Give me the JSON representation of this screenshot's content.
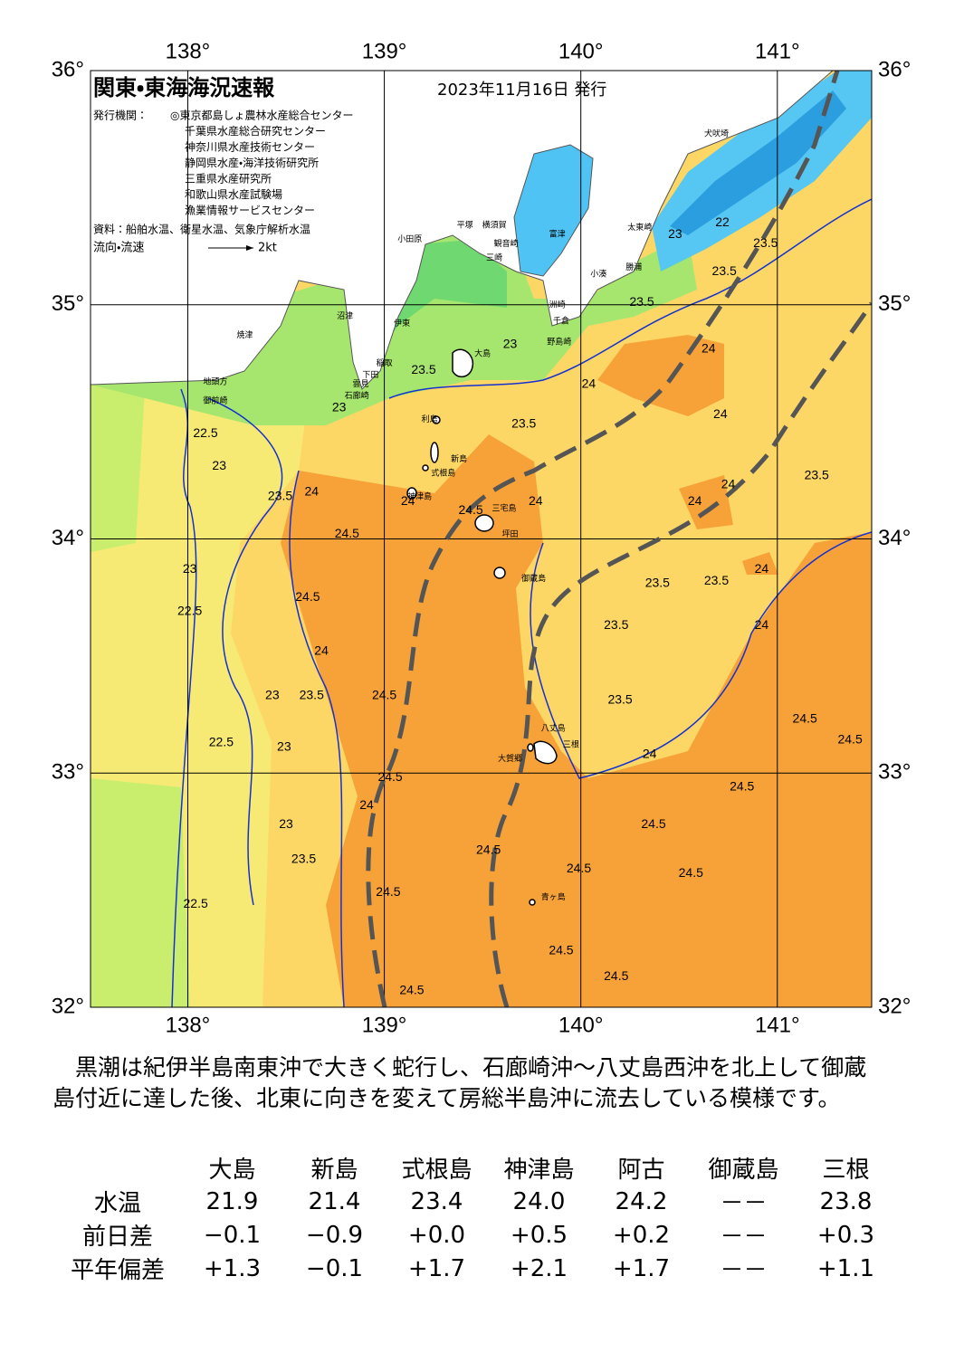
{
  "header": {
    "title": "関東・東海海況速報",
    "date": "2023年11月16日 発行",
    "issuer_label": "発行機関：",
    "issuers": [
      "◎東京都島しょ農林水産総合センター",
      "千葉県水産総合研究センター",
      "神奈川県水産技術センター",
      "静岡県水産・海洋技術研究所",
      "三重県水産研究所",
      "和歌山県水産試験場",
      "漁業情報サービスセンター"
    ],
    "source": "資料：船舶水温、衛星水温、気象庁解析水温",
    "flow_label": "流向・流速",
    "flow_scale": "2kt"
  },
  "map": {
    "lonlim": [
      137.505,
      141.48
    ],
    "latlim": [
      32,
      36
    ],
    "lonticks": [
      {
        "value": 138,
        "label": "138°"
      },
      {
        "value": 139,
        "label": "139°"
      },
      {
        "value": 140,
        "label": "140°"
      },
      {
        "value": 141,
        "label": "141°"
      }
    ],
    "latticks": [
      {
        "value": 36,
        "label": "36°"
      },
      {
        "value": 35,
        "label": "35°"
      },
      {
        "value": 34,
        "label": "34°"
      },
      {
        "value": 33,
        "label": "33°"
      },
      {
        "value": 32,
        "label": "32°"
      }
    ],
    "contour_labels": [
      {
        "value": 22.5,
        "lon": 138.09,
        "lat": 34.45
      },
      {
        "value": 23,
        "lon": 138.16,
        "lat": 34.31
      },
      {
        "value": 23.5,
        "lon": 138.47,
        "lat": 34.18
      },
      {
        "value": 24,
        "lon": 138.63,
        "lat": 34.2
      },
      {
        "value": 24.5,
        "lon": 138.81,
        "lat": 34.02
      },
      {
        "value": 24.5,
        "lon": 138.61,
        "lat": 33.75
      },
      {
        "value": 24,
        "lon": 138.68,
        "lat": 33.52
      },
      {
        "value": 23.5,
        "lon": 138.63,
        "lat": 33.33
      },
      {
        "value": 24.5,
        "lon": 139.0,
        "lat": 33.33
      },
      {
        "value": 24.5,
        "lon": 139.03,
        "lat": 32.98
      },
      {
        "value": 24,
        "lon": 138.91,
        "lat": 32.86
      },
      {
        "value": 23.5,
        "lon": 138.59,
        "lat": 32.63
      },
      {
        "value": 24.5,
        "lon": 139.02,
        "lat": 32.49
      },
      {
        "value": 24.5,
        "lon": 139.14,
        "lat": 32.07
      },
      {
        "value": 22.5,
        "lon": 138.04,
        "lat": 32.44
      },
      {
        "value": 22.5,
        "lon": 138.17,
        "lat": 33.13
      },
      {
        "value": 22.5,
        "lon": 138.01,
        "lat": 33.69
      },
      {
        "value": 23,
        "lon": 138.01,
        "lat": 33.87
      },
      {
        "value": 23,
        "lon": 138.43,
        "lat": 33.33
      },
      {
        "value": 23,
        "lon": 138.49,
        "lat": 33.11
      },
      {
        "value": 23,
        "lon": 138.5,
        "lat": 32.78
      },
      {
        "value": 23.5,
        "lon": 139.2,
        "lat": 34.72
      },
      {
        "value": 23,
        "lon": 139.64,
        "lat": 34.83
      },
      {
        "value": 23.5,
        "lon": 139.71,
        "lat": 34.49
      },
      {
        "value": 24,
        "lon": 139.77,
        "lat": 34.16
      },
      {
        "value": 24.5,
        "lon": 139.44,
        "lat": 34.12
      },
      {
        "value": 24,
        "lon": 139.12,
        "lat": 34.16
      },
      {
        "value": 24.5,
        "lon": 139.53,
        "lat": 32.67
      },
      {
        "value": 24.5,
        "lon": 139.99,
        "lat": 32.59
      },
      {
        "value": 24.5,
        "lon": 139.9,
        "lat": 32.24
      },
      {
        "value": 24.5,
        "lon": 140.18,
        "lat": 32.13
      },
      {
        "value": 24.5,
        "lon": 140.37,
        "lat": 32.78
      },
      {
        "value": 24.5,
        "lon": 140.56,
        "lat": 32.57
      },
      {
        "value": 24.5,
        "lon": 140.82,
        "lat": 32.94
      },
      {
        "value": 24,
        "lon": 140.35,
        "lat": 33.08
      },
      {
        "value": 24.5,
        "lon": 141.14,
        "lat": 33.23
      },
      {
        "value": 24.5,
        "lon": 141.37,
        "lat": 33.14
      },
      {
        "value": 24,
        "lon": 140.92,
        "lat": 33.63
      },
      {
        "value": 23.5,
        "lon": 140.18,
        "lat": 33.63
      },
      {
        "value": 23.5,
        "lon": 140.2,
        "lat": 33.31
      },
      {
        "value": 23.5,
        "lon": 140.39,
        "lat": 33.81
      },
      {
        "value": 23.5,
        "lon": 140.69,
        "lat": 33.82
      },
      {
        "value": 24,
        "lon": 140.92,
        "lat": 33.87
      },
      {
        "value": 24,
        "lon": 140.75,
        "lat": 34.23
      },
      {
        "value": 24,
        "lon": 140.58,
        "lat": 34.16
      },
      {
        "value": 23.5,
        "lon": 141.2,
        "lat": 34.27
      },
      {
        "value": 24,
        "lon": 140.71,
        "lat": 34.53
      },
      {
        "value": 24,
        "lon": 140.65,
        "lat": 34.81
      },
      {
        "value": 24,
        "lon": 140.04,
        "lat": 34.66
      },
      {
        "value": 23.5,
        "lon": 140.31,
        "lat": 35.01
      },
      {
        "value": 23.5,
        "lon": 140.73,
        "lat": 35.14
      },
      {
        "value": 23.5,
        "lon": 140.94,
        "lat": 35.26
      },
      {
        "value": 22,
        "lon": 140.72,
        "lat": 35.35
      },
      {
        "value": 23,
        "lon": 140.48,
        "lat": 35.3
      },
      {
        "value": 23,
        "lon": 138.77,
        "lat": 34.56
      }
    ],
    "places": [
      {
        "name": "大島",
        "lon": 139.5,
        "lat": 34.79
      },
      {
        "name": "利島",
        "lon": 139.23,
        "lat": 34.51
      },
      {
        "name": "新島",
        "lon": 139.38,
        "lat": 34.34
      },
      {
        "name": "式根島",
        "lon": 139.3,
        "lat": 34.28
      },
      {
        "name": "神津島",
        "lon": 139.18,
        "lat": 34.18
      },
      {
        "name": "三宅島",
        "lon": 139.61,
        "lat": 34.13
      },
      {
        "name": "坪田",
        "lon": 139.64,
        "lat": 34.02
      },
      {
        "name": "御蔵島",
        "lon": 139.76,
        "lat": 33.83
      },
      {
        "name": "八丈島",
        "lon": 139.86,
        "lat": 33.19
      },
      {
        "name": "三根",
        "lon": 139.95,
        "lat": 33.12
      },
      {
        "name": "大賀郷",
        "lon": 139.64,
        "lat": 33.06
      },
      {
        "name": "青ヶ島",
        "lon": 139.86,
        "lat": 32.47
      },
      {
        "name": "小田原",
        "lon": 139.13,
        "lat": 35.28
      },
      {
        "name": "平塚",
        "lon": 139.41,
        "lat": 35.34
      },
      {
        "name": "横須賀",
        "lon": 139.56,
        "lat": 35.34
      },
      {
        "name": "観音崎",
        "lon": 139.62,
        "lat": 35.26
      },
      {
        "name": "富津",
        "lon": 139.88,
        "lat": 35.3
      },
      {
        "name": "三崎",
        "lon": 139.56,
        "lat": 35.2
      },
      {
        "name": "洲崎",
        "lon": 139.88,
        "lat": 35.0
      },
      {
        "name": "千倉",
        "lon": 139.9,
        "lat": 34.93
      },
      {
        "name": "野島崎",
        "lon": 139.89,
        "lat": 34.84
      },
      {
        "name": "小湊",
        "lon": 140.09,
        "lat": 35.13
      },
      {
        "name": "勝浦",
        "lon": 140.27,
        "lat": 35.16
      },
      {
        "name": "太東崎",
        "lon": 140.3,
        "lat": 35.33
      },
      {
        "name": "犬吠埼",
        "lon": 140.69,
        "lat": 35.73
      },
      {
        "name": "沼津",
        "lon": 138.8,
        "lat": 34.95
      },
      {
        "name": "伊東",
        "lon": 139.09,
        "lat": 34.92
      },
      {
        "name": "焼津",
        "lon": 138.29,
        "lat": 34.87
      },
      {
        "name": "稲取",
        "lon": 139.0,
        "lat": 34.75
      },
      {
        "name": "下田",
        "lon": 138.93,
        "lat": 34.7
      },
      {
        "name": "雲見",
        "lon": 138.88,
        "lat": 34.66
      },
      {
        "name": "石廊崎",
        "lon": 138.86,
        "lat": 34.61
      },
      {
        "name": "地頭方",
        "lon": 138.14,
        "lat": 34.67
      },
      {
        "name": "御前崎",
        "lon": 138.14,
        "lat": 34.59
      }
    ]
  },
  "summary": "黒潮は紀伊半島南東沖で大きく蛇行し、石廊崎沖～八丈島西沖を北上して御蔵島付近に達した後、北東に向きを変えて房総半島沖に流去している模様です。",
  "table": {
    "columns": [
      "大島",
      "新島",
      "式根島",
      "神津島",
      "阿古",
      "御蔵島",
      "三根"
    ],
    "rows": [
      {
        "label": "水温",
        "cells": [
          "21.9",
          "21.4",
          "23.4",
          "24.0",
          "24.2",
          "－－",
          "23.8"
        ]
      },
      {
        "label": "前日差",
        "cells": [
          "−0.1",
          "−0.9",
          "+0.0",
          "+0.5",
          "+0.2",
          "－－",
          "+0.3"
        ]
      },
      {
        "label": "平年偏差",
        "cells": [
          "+1.3",
          "−0.1",
          "+1.7",
          "+2.1",
          "+1.7",
          "－－",
          "+1.1"
        ]
      }
    ]
  }
}
